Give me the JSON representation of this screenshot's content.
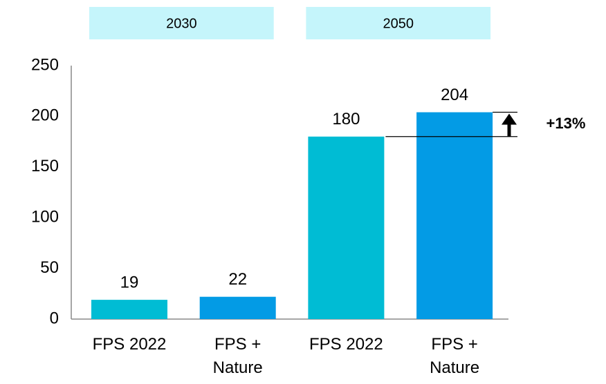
{
  "chart_data": {
    "type": "bar",
    "groups": [
      "2030",
      "2050"
    ],
    "categories": [
      "FPS 2022",
      "FPS + Nature",
      "FPS 2022",
      "FPS + Nature"
    ],
    "values": [
      19,
      22,
      180,
      204
    ],
    "colors": [
      "#00bcd4",
      "#039be5",
      "#00bcd4",
      "#039be5"
    ],
    "ylim": [
      0,
      250
    ],
    "yticks": [
      0,
      50,
      100,
      150,
      200,
      250
    ],
    "annotation": "+13%"
  }
}
